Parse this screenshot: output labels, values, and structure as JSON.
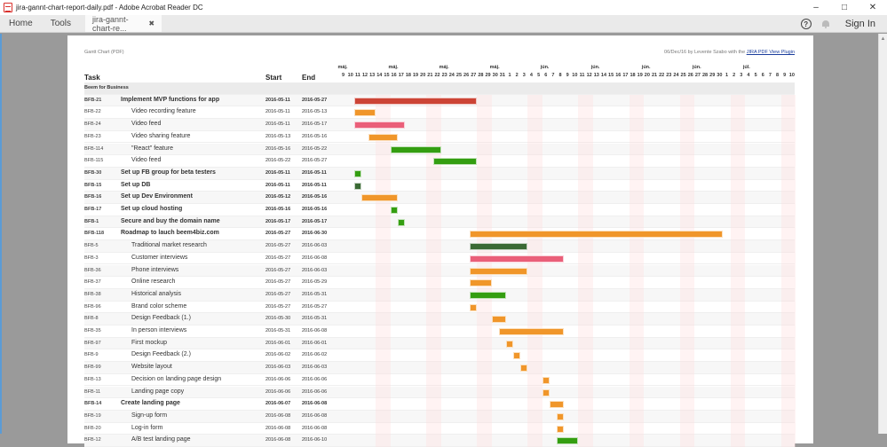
{
  "window": {
    "title": "jira-gannt-chart-report-daily.pdf - Adobe Acrobat Reader DC",
    "controls": {
      "minimize": "–",
      "maximize": "□",
      "close": "✕"
    }
  },
  "menubar": {
    "home": "Home",
    "tools": "Tools",
    "doc_tab": "jira-gannt-chart-re...",
    "doc_tab_close": "✖",
    "help_icon": "?",
    "sign_in": "Sign In"
  },
  "page": {
    "doc_title": "Gantt Chart (PDF)",
    "credit_prefix": "06/Dec/16 by Levente Szabo with the ",
    "credit_link": "JIRA PDF View Plugin",
    "columns": {
      "task": "Task",
      "start": "Start",
      "end": "End"
    },
    "group": "Beem for Business"
  },
  "colors": {
    "red": "#cc4436",
    "orange": "#f0962a",
    "pink": "#ea5f79",
    "green": "#349e11",
    "dark_green": "#3a6a35"
  },
  "chart_data": {
    "type": "gantt",
    "title": "Gantt Chart (PDF)",
    "timeline_start": "2016-05-09",
    "timeline_end": "2016-07-10",
    "week_labels": [
      {
        "label": "máj.",
        "day": 9
      },
      {
        "label": "máj.",
        "day": 16
      },
      {
        "label": "máj.",
        "day": 23
      },
      {
        "label": "máj.",
        "day": 30
      },
      {
        "label": "jún.",
        "day": 6
      },
      {
        "label": "jún.",
        "day": 13
      },
      {
        "label": "jún.",
        "day": 20
      },
      {
        "label": "jún.",
        "day": 27
      },
      {
        "label": "júl.",
        "day": 4
      }
    ],
    "day_labels": [
      9,
      10,
      11,
      12,
      13,
      14,
      15,
      16,
      17,
      18,
      19,
      20,
      21,
      22,
      23,
      24,
      25,
      26,
      27,
      28,
      29,
      30,
      31,
      1,
      2,
      3,
      4,
      5,
      6,
      7,
      8,
      9,
      10,
      11,
      12,
      13,
      14,
      15,
      16,
      17,
      18,
      19,
      20,
      21,
      22,
      23,
      24,
      25,
      26,
      27,
      28,
      29,
      30,
      1,
      2,
      3,
      4,
      5,
      6,
      7,
      8,
      9,
      10
    ],
    "tasks": [
      {
        "key": "BFB-21",
        "summary": "Implement MVP functions for app",
        "start": "2016-05-11",
        "end": "2016-05-27",
        "level": 0,
        "bold": true,
        "color": "red",
        "o": 2,
        "d": 17
      },
      {
        "key": "BFB-22",
        "summary": "Video recording feature",
        "start": "2016-05-11",
        "end": "2016-05-13",
        "level": 1,
        "bold": false,
        "color": "orange",
        "o": 2,
        "d": 3
      },
      {
        "key": "BFB-24",
        "summary": "Video feed",
        "start": "2016-05-11",
        "end": "2016-05-17",
        "level": 1,
        "bold": false,
        "color": "pink",
        "o": 2,
        "d": 7
      },
      {
        "key": "BFB-23",
        "summary": "Video sharing feature",
        "start": "2016-05-13",
        "end": "2016-05-16",
        "level": 1,
        "bold": false,
        "color": "orange",
        "o": 4,
        "d": 4
      },
      {
        "key": "BFB-114",
        "summary": "\"React\" feature",
        "start": "2016-05-16",
        "end": "2016-05-22",
        "level": 1,
        "bold": false,
        "color": "green",
        "o": 7,
        "d": 7
      },
      {
        "key": "BFB-115",
        "summary": "Video feed",
        "start": "2016-05-22",
        "end": "2016-05-27",
        "level": 1,
        "bold": false,
        "color": "green",
        "o": 13,
        "d": 6
      },
      {
        "key": "BFB-30",
        "summary": "Set up FB group for beta testers",
        "start": "2016-05-11",
        "end": "2016-05-11",
        "level": 0,
        "bold": true,
        "color": "green",
        "o": 2,
        "d": 1
      },
      {
        "key": "BFB-15",
        "summary": "Set up DB",
        "start": "2016-05-11",
        "end": "2016-05-11",
        "level": 0,
        "bold": true,
        "color": "dark_green",
        "o": 2,
        "d": 1
      },
      {
        "key": "BFB-16",
        "summary": "Set up Dev Environment",
        "start": "2016-05-12",
        "end": "2016-05-16",
        "level": 0,
        "bold": true,
        "color": "orange",
        "o": 3,
        "d": 5
      },
      {
        "key": "BFB-17",
        "summary": "Set up cloud hosting",
        "start": "2016-05-16",
        "end": "2016-05-16",
        "level": 0,
        "bold": true,
        "color": "green",
        "o": 7,
        "d": 1
      },
      {
        "key": "BFB-1",
        "summary": "Secure and buy the domain name",
        "start": "2016-05-17",
        "end": "2016-05-17",
        "level": 0,
        "bold": true,
        "color": "green",
        "o": 8,
        "d": 1
      },
      {
        "key": "BFB-118",
        "summary": "Roadmap to lauch beem4biz.com",
        "start": "2016-05-27",
        "end": "2016-06-30",
        "level": 0,
        "bold": true,
        "color": "orange",
        "o": 18,
        "d": 35
      },
      {
        "key": "BFB-5",
        "summary": "Traditional market research",
        "start": "2016-05-27",
        "end": "2016-06-03",
        "level": 1,
        "bold": false,
        "color": "dark_green",
        "o": 18,
        "d": 8
      },
      {
        "key": "BFB-3",
        "summary": "Customer interviews",
        "start": "2016-05-27",
        "end": "2016-06-08",
        "level": 1,
        "bold": false,
        "color": "pink",
        "o": 18,
        "d": 13
      },
      {
        "key": "BFB-36",
        "summary": "Phone interviews",
        "start": "2016-05-27",
        "end": "2016-06-03",
        "level": 1,
        "bold": false,
        "color": "orange",
        "o": 18,
        "d": 8
      },
      {
        "key": "BFB-37",
        "summary": "Online research",
        "start": "2016-05-27",
        "end": "2016-05-29",
        "level": 1,
        "bold": false,
        "color": "orange",
        "o": 18,
        "d": 3
      },
      {
        "key": "BFB-38",
        "summary": "Historical analysis",
        "start": "2016-05-27",
        "end": "2016-05-31",
        "level": 1,
        "bold": false,
        "color": "green",
        "o": 18,
        "d": 5
      },
      {
        "key": "BFB-96",
        "summary": "Brand color scheme",
        "start": "2016-05-27",
        "end": "2016-05-27",
        "level": 1,
        "bold": false,
        "color": "orange",
        "o": 18,
        "d": 1
      },
      {
        "key": "BFB-8",
        "summary": "Design Feedback (1.)",
        "start": "2016-05-30",
        "end": "2016-05-31",
        "level": 1,
        "bold": false,
        "color": "orange",
        "o": 21,
        "d": 2
      },
      {
        "key": "BFB-35",
        "summary": "In person interviews",
        "start": "2016-05-31",
        "end": "2016-06-08",
        "level": 1,
        "bold": false,
        "color": "orange",
        "o": 22,
        "d": 9
      },
      {
        "key": "BFB-97",
        "summary": "First mockup",
        "start": "2016-06-01",
        "end": "2016-06-01",
        "level": 1,
        "bold": false,
        "color": "orange",
        "o": 23,
        "d": 1
      },
      {
        "key": "BFB-9",
        "summary": "Design Feedback (2.)",
        "start": "2016-06-02",
        "end": "2016-06-02",
        "level": 1,
        "bold": false,
        "color": "orange",
        "o": 24,
        "d": 1
      },
      {
        "key": "BFB-99",
        "summary": "Website layout",
        "start": "2016-06-03",
        "end": "2016-06-03",
        "level": 1,
        "bold": false,
        "color": "orange",
        "o": 25,
        "d": 1
      },
      {
        "key": "BFB-13",
        "summary": "Decision on landing page design",
        "start": "2016-06-06",
        "end": "2016-06-06",
        "level": 1,
        "bold": false,
        "color": "orange",
        "o": 28,
        "d": 1
      },
      {
        "key": "BFB-11",
        "summary": "Landing page copy",
        "start": "2016-06-06",
        "end": "2016-06-06",
        "level": 1,
        "bold": false,
        "color": "orange",
        "o": 28,
        "d": 1
      },
      {
        "key": "BFB-14",
        "summary": "Create landing page",
        "start": "2016-06-07",
        "end": "2016-06-08",
        "level": 0,
        "bold": true,
        "color": "orange",
        "o": 29,
        "d": 2
      },
      {
        "key": "BFB-19",
        "summary": "Sign-up form",
        "start": "2016-06-08",
        "end": "2016-06-08",
        "level": 1,
        "bold": false,
        "color": "orange",
        "o": 30,
        "d": 1
      },
      {
        "key": "BFB-20",
        "summary": "Log-in form",
        "start": "2016-06-08",
        "end": "2016-06-08",
        "level": 1,
        "bold": false,
        "color": "orange",
        "o": 30,
        "d": 1
      },
      {
        "key": "BFB-12",
        "summary": "A/B test landing page",
        "start": "2016-06-08",
        "end": "2016-06-10",
        "level": 1,
        "bold": false,
        "color": "green",
        "o": 30,
        "d": 3
      }
    ]
  }
}
